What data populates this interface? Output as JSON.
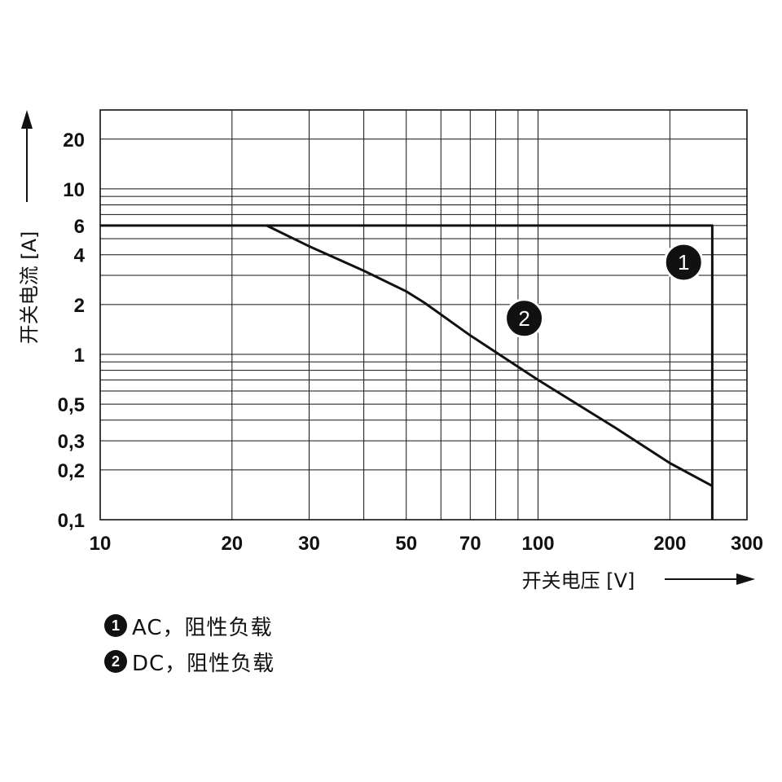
{
  "chart_data": {
    "type": "line",
    "xlabel": "开关电压 [V]",
    "ylabel": "开关电流 [A]",
    "x_scale": "log",
    "y_scale": "log",
    "xlim": [
      10,
      300
    ],
    "ylim": [
      0.1,
      30
    ],
    "x_ticks": [
      10,
      20,
      30,
      50,
      70,
      100,
      200,
      300
    ],
    "x_tick_labels": [
      "10",
      "20",
      "30",
      "50",
      "70",
      "100",
      "200",
      "300"
    ],
    "y_ticks": [
      0.1,
      0.2,
      0.3,
      0.5,
      1,
      2,
      4,
      6,
      10,
      20
    ],
    "y_tick_labels": [
      "0,1",
      "0,2",
      "0,3",
      "0,5",
      "1",
      "2",
      "4",
      "6",
      "10",
      "20"
    ],
    "grid": true,
    "series": [
      {
        "marker": "1",
        "points": [
          [
            10,
            6
          ],
          [
            250,
            6
          ],
          [
            250,
            0.1
          ]
        ]
      },
      {
        "marker": "2",
        "points": [
          [
            24,
            6
          ],
          [
            30,
            4.5
          ],
          [
            40,
            3.2
          ],
          [
            50,
            2.4
          ],
          [
            55,
            2.05
          ],
          [
            70,
            1.3
          ],
          [
            100,
            0.7
          ],
          [
            150,
            0.36
          ],
          [
            200,
            0.22
          ],
          [
            250,
            0.16
          ]
        ]
      }
    ],
    "markers": [
      {
        "label": "1",
        "x": 215,
        "y": 3.6
      },
      {
        "label": "2",
        "x": 93,
        "y": 1.65
      }
    ]
  },
  "legend": [
    {
      "num": "1",
      "text": "AC，阻性负载"
    },
    {
      "num": "2",
      "text": "DC，阻性负载"
    }
  ]
}
